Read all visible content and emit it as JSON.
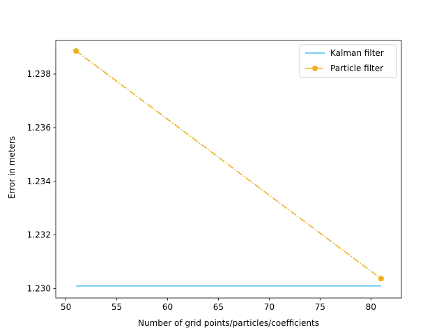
{
  "chart_data": {
    "type": "line",
    "title": "",
    "xlabel": "Number of grid points/particles/coefficients",
    "ylabel": "Error in meters",
    "xlim": [
      49,
      83
    ],
    "ylim": [
      1.22965,
      1.23925
    ],
    "xticks": [
      50,
      55,
      60,
      65,
      70,
      75,
      80
    ],
    "yticks": [
      1.23,
      1.232,
      1.234,
      1.236,
      1.238
    ],
    "ytick_labels": [
      "1.230",
      "1.232",
      "1.234",
      "1.236",
      "1.238"
    ],
    "grid": false,
    "legend": "top-right",
    "series": [
      {
        "name": "Kalman filter",
        "x": [
          51,
          81
        ],
        "y": [
          1.2301,
          1.2301
        ],
        "color": "#4dbeee",
        "linestyle": "solid",
        "marker": "none"
      },
      {
        "name": "Particle filter",
        "x": [
          51,
          81
        ],
        "y": [
          1.23886,
          1.23037
        ],
        "color": "#edb120",
        "linestyle": "dashdot",
        "marker": "pentagon"
      }
    ]
  }
}
